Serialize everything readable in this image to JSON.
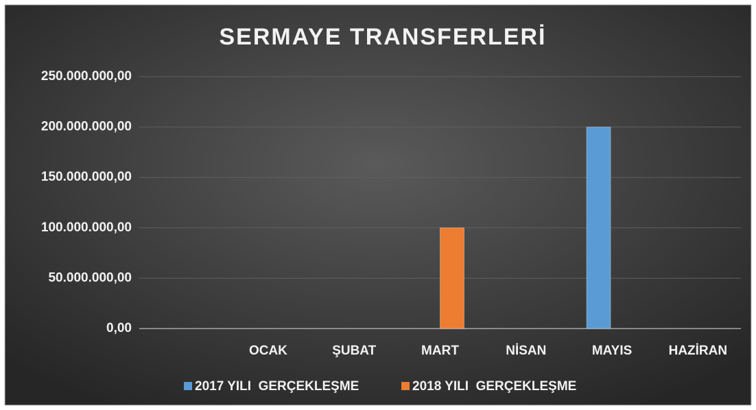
{
  "chart_data": {
    "type": "bar",
    "title": "SERMAYE TRANSFERLERİ",
    "categories": [
      null,
      "OCAK",
      "ŞUBAT",
      "MART",
      "NİSAN",
      "MAYIS",
      "HAZİRAN"
    ],
    "series": [
      {
        "name": "2017 YILI  GERÇEKLEŞME",
        "color": "#5b9bd5",
        "values": [
          null,
          0,
          0,
          0,
          0,
          200000000,
          0
        ]
      },
      {
        "name": "2018 YILI  GERÇEKLEŞME",
        "color": "#ed7d31",
        "values": [
          null,
          0,
          0,
          100000000,
          0,
          0,
          0
        ]
      }
    ],
    "ylim": [
      0,
      250000000
    ],
    "yticks": [
      {
        "value": 0,
        "label": "0,00"
      },
      {
        "value": 50000000,
        "label": "50.000.000,00"
      },
      {
        "value": 100000000,
        "label": "100.000.000,00"
      },
      {
        "value": 150000000,
        "label": "150.000.000,00"
      },
      {
        "value": 200000000,
        "label": "200.000.000,00"
      },
      {
        "value": 250000000,
        "label": "250.000.000,00"
      }
    ],
    "grid": true,
    "legend": "bottom"
  }
}
